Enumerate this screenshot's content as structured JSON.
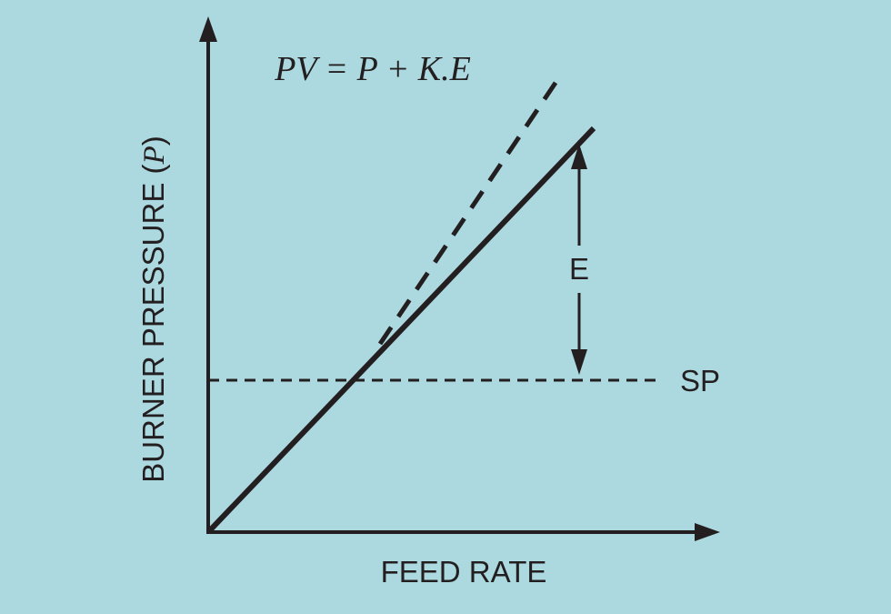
{
  "equation": "PV = P + K.E",
  "y_axis_label": {
    "parts": [
      "BURNER PRESSURE (",
      "P",
      ")"
    ]
  },
  "x_axis_label": "FEED RATE",
  "error_label": "E",
  "setpoint_label": "SP"
}
